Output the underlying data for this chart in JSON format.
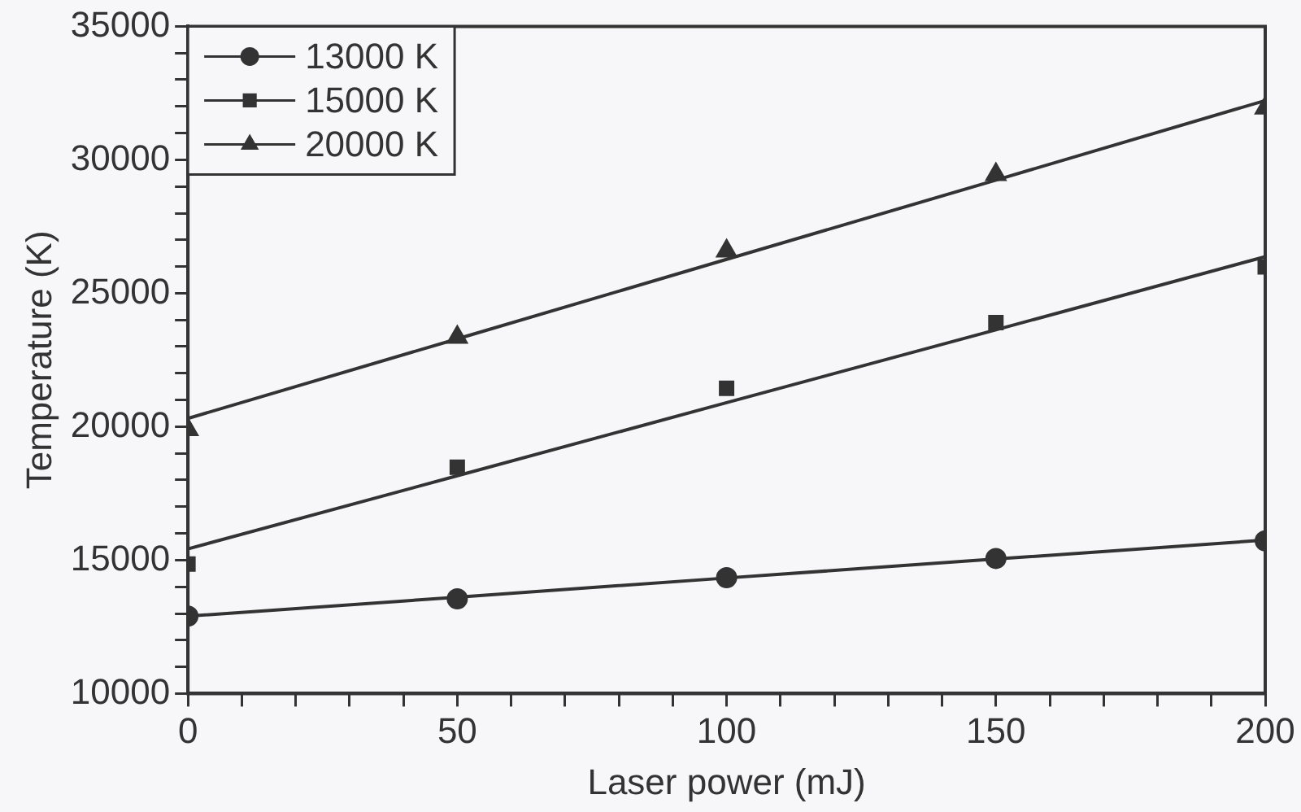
{
  "chart_data": {
    "type": "scatter",
    "xlabel": "Laser power (mJ)",
    "ylabel": "Temperature (K)",
    "x": [
      0,
      50,
      100,
      150,
      200
    ],
    "xlim": [
      0,
      200
    ],
    "xticks": [
      0,
      {
        "value": 10,
        "label": null
      },
      {
        "value": 20,
        "label": null
      },
      {
        "value": 30,
        "label": null
      },
      {
        "value": 40,
        "label": null
      },
      50,
      {
        "value": 60,
        "label": null
      },
      {
        "value": 70,
        "label": null
      },
      {
        "value": 80,
        "label": null
      },
      {
        "value": 90,
        "label": null
      },
      100,
      {
        "value": 110,
        "label": null
      },
      {
        "value": 120,
        "label": null
      },
      {
        "value": 130,
        "label": null
      },
      {
        "value": 140,
        "label": null
      },
      150,
      {
        "value": 160,
        "label": null
      },
      {
        "value": 170,
        "label": null
      },
      {
        "value": 180,
        "label": null
      },
      {
        "value": 190,
        "label": null
      },
      200
    ],
    "ylim": [
      10000,
      35000
    ],
    "yticks": [
      10000,
      {
        "value": 11000,
        "label": null
      },
      {
        "value": 12000,
        "label": null
      },
      {
        "value": 13000,
        "label": null
      },
      {
        "value": 14000,
        "label": null
      },
      15000,
      {
        "value": 16000,
        "label": null
      },
      {
        "value": 17000,
        "label": null
      },
      {
        "value": 18000,
        "label": null
      },
      {
        "value": 19000,
        "label": null
      },
      20000,
      {
        "value": 21000,
        "label": null
      },
      {
        "value": 22000,
        "label": null
      },
      {
        "value": 23000,
        "label": null
      },
      {
        "value": 24000,
        "label": null
      },
      25000,
      {
        "value": 26000,
        "label": null
      },
      {
        "value": 27000,
        "label": null
      },
      {
        "value": 28000,
        "label": null
      },
      {
        "value": 29000,
        "label": null
      },
      30000,
      {
        "value": 31000,
        "label": null
      },
      {
        "value": 32000,
        "label": null
      },
      {
        "value": 33000,
        "label": null
      },
      {
        "value": 34000,
        "label": null
      },
      35000
    ],
    "grid": false,
    "legend": "top left",
    "series": [
      {
        "name": "13000 K",
        "type": "scatter",
        "marker": "circle",
        "color": "#333333",
        "values": [
          12900,
          13550,
          14340,
          15060,
          15720
        ]
      },
      {
        "name": "15000 K",
        "type": "scatter",
        "marker": "square",
        "color": "#333333",
        "values": [
          14850,
          18480,
          21440,
          23900,
          25990
        ]
      },
      {
        "name": "20000 K",
        "type": "scatter",
        "marker": "triangle",
        "color": "#333333",
        "values": [
          19890,
          23350,
          26580,
          29450,
          31940
        ]
      },
      {
        "type": "line",
        "marker": "none",
        "color": "#333333",
        "values": [
          12900,
          13610,
          14330,
          15040,
          15750
        ]
      },
      {
        "type": "line",
        "marker": "none",
        "color": "#333333",
        "values": [
          15420,
          18160,
          20900,
          23630,
          26370
        ]
      },
      {
        "type": "line",
        "marker": "none",
        "color": "#333333",
        "values": [
          20310,
          23290,
          26270,
          29240,
          32220
        ]
      }
    ]
  }
}
